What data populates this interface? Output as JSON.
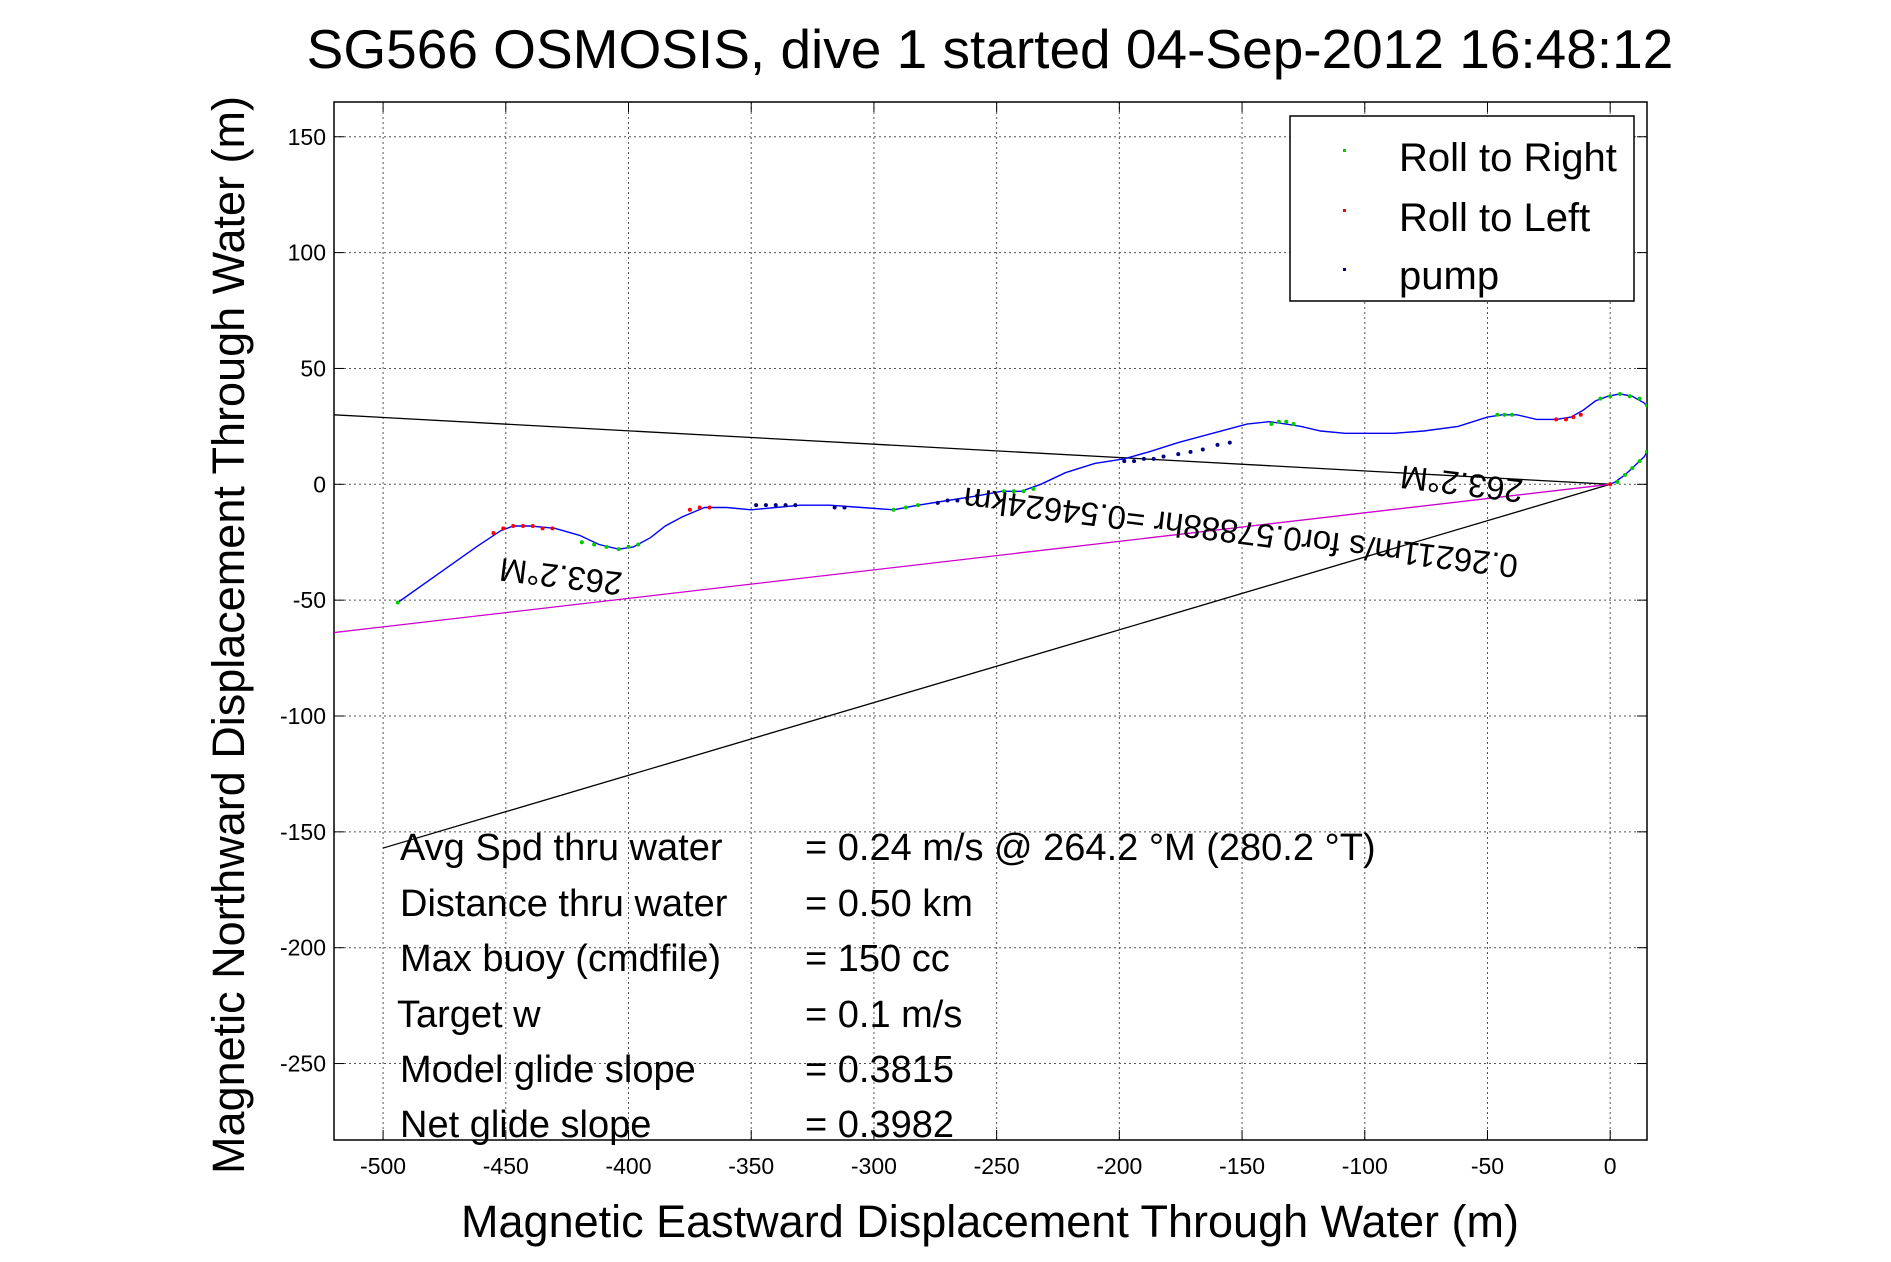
{
  "chart_data": {
    "type": "line",
    "title": "SG566 OSMOSIS, dive 1 started 04-Sep-2012 16:48:12",
    "xlabel": "Magnetic Eastward Displacement Through Water (m)",
    "ylabel": "Magnetic Northward Displacement Through Water (m)",
    "xlim": [
      -520,
      15
    ],
    "ylim": [
      -283,
      165
    ],
    "xticks": [
      -500,
      -450,
      -400,
      -350,
      -300,
      -250,
      -200,
      -150,
      -100,
      -50,
      0
    ],
    "yticks": [
      150,
      100,
      50,
      0,
      -50,
      -100,
      -150,
      -200,
      -250
    ],
    "grid": true,
    "legend_position": "top-right",
    "legend": [
      {
        "label": "Roll to Right",
        "color": "#00cc00"
      },
      {
        "label": "Roll to Left",
        "color": "#ff0000"
      },
      {
        "label": "pump",
        "color": "#000080"
      }
    ],
    "series": [
      {
        "color": "#0000ff",
        "x": [
          -494,
          -478,
          -462,
          -452,
          -447,
          -440,
          -430,
          -420,
          -412,
          -404,
          -398,
          -391,
          -385,
          -378,
          -369,
          -360,
          -350,
          -340,
          -330,
          -318,
          -305,
          -292,
          -282,
          -270,
          -258,
          -248,
          -240,
          -232,
          -222,
          -210,
          -198,
          -188,
          -176,
          -162,
          -148,
          -139,
          -132,
          -126,
          -118,
          -108,
          -98,
          -88,
          -76,
          -62,
          -50,
          -44,
          -38,
          -30,
          -22,
          -16,
          -11,
          -6,
          -1,
          4,
          9,
          14,
          17,
          18,
          17,
          14,
          10,
          6,
          2,
          0
        ],
        "y": [
          -51,
          -39,
          -27,
          -20,
          -18,
          -18,
          -19,
          -22,
          -26,
          -28,
          -27,
          -23,
          -18,
          -14,
          -10,
          -10,
          -11,
          -10,
          -9,
          -9,
          -10,
          -11,
          -9,
          -7,
          -5,
          -3,
          -3,
          0,
          5,
          9,
          11,
          14,
          18,
          22,
          26,
          27,
          26,
          25,
          23,
          22,
          22,
          22,
          23,
          25,
          29,
          30,
          30,
          28,
          28,
          29,
          32,
          36,
          38,
          39,
          38,
          35,
          31,
          25,
          19,
          12,
          8,
          4,
          1,
          0
        ]
      },
      {
        "color": "#00cc00",
        "x": [
          -494,
          -419,
          -414,
          -409,
          -404,
          -400,
          -396,
          -292,
          -287,
          -282,
          -247,
          -243,
          -239,
          -235,
          -138,
          -135,
          -132,
          -129,
          -46,
          -43,
          -40,
          -4,
          0,
          4,
          8,
          12,
          15,
          17,
          18,
          17,
          15,
          12,
          9,
          6,
          3
        ],
        "y": [
          -51,
          -25,
          -26,
          -27,
          -28,
          -27,
          -26,
          -11,
          -10,
          -9,
          -3,
          -3,
          -3,
          -2,
          26,
          27,
          27,
          26,
          30,
          30,
          30,
          37,
          38,
          39,
          38,
          37,
          34,
          29,
          24,
          19,
          14,
          10,
          7,
          4,
          1
        ]
      },
      {
        "color": "#ff0000",
        "x": [
          -455,
          -451,
          -447,
          -443,
          -439,
          -435,
          -431,
          -375,
          -371,
          -367,
          -22,
          -18,
          -15,
          -12,
          0
        ],
        "y": [
          -21,
          -19,
          -18,
          -18,
          -18,
          -19,
          -19,
          -11,
          -10,
          -10,
          28,
          28,
          29,
          30,
          0
        ]
      },
      {
        "color": "#000080",
        "x": [
          -348,
          -344,
          -340,
          -336,
          -332,
          -316,
          -312,
          -274,
          -270,
          -266,
          -262,
          -258,
          -198,
          -194,
          -190,
          -186,
          -182,
          -176,
          -171,
          -166,
          -160,
          -155
        ],
        "y": [
          -9,
          -9,
          -9,
          -9,
          -9,
          -10,
          -10,
          -8,
          -7,
          -7,
          -6,
          -5,
          10,
          10,
          11,
          11,
          12,
          13,
          14,
          15,
          17,
          18
        ]
      }
    ],
    "reference_lines": [
      {
        "color": "#000000",
        "x": [
          0,
          -520
        ],
        "y": [
          0,
          30
        ]
      },
      {
        "color": "#000000",
        "x": [
          0,
          -500
        ],
        "y": [
          0,
          -157
        ]
      },
      {
        "color": "#cc00cc",
        "x": [
          0,
          -520
        ],
        "y": [
          0,
          -64
        ]
      }
    ],
    "annotations": [
      {
        "text": "263.2°M",
        "x": -60,
        "y": 5,
        "rotation": 187
      },
      {
        "text": "0.26211m/s for0.57888hr =0.54624km",
        "x": -150,
        "y": -16,
        "rotation": 187
      },
      {
        "text": "263.2°M",
        "x": -427,
        "y": -35,
        "rotation": 187
      }
    ],
    "stats": [
      {
        "label": "Avg Spd thru water",
        "value": "=  0.24 m/s @ 264.2 °M (280.2 °T)"
      },
      {
        "label": "Distance thru water",
        "value": "=  0.50 km"
      },
      {
        "label": "Max buoy (cmdfile)",
        "value": "= 150 cc"
      },
      {
        "label": "Target w",
        "value": "= 0.1 m/s"
      },
      {
        "label": "Model glide slope",
        "value": "= 0.3815"
      },
      {
        "label": "Net glide slope",
        "value": "= 0.3982"
      }
    ]
  }
}
